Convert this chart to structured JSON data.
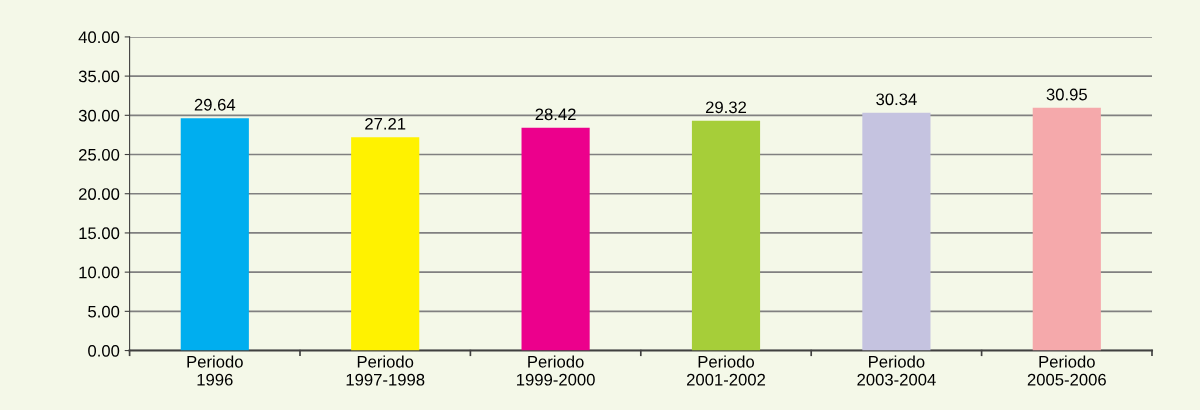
{
  "chart_data": {
    "type": "bar",
    "categories": [
      "Periodo\n1996",
      "Periodo\n1997-1998",
      "Periodo\n1999-2000",
      "Periodo\n2001-2002",
      "Periodo\n2003-2004",
      "Periodo\n2005-2006"
    ],
    "values": [
      29.64,
      27.21,
      28.42,
      29.32,
      30.34,
      30.95
    ],
    "colors": [
      "#00aeef",
      "#fff200",
      "#ec008c",
      "#a6ce39",
      "#c5c3e0",
      "#f5a9ab"
    ],
    "value_labels": [
      "29.64",
      "27.21",
      "28.42",
      "29.32",
      "30.34",
      "30.95"
    ],
    "ylim": [
      0,
      40
    ],
    "yticks": [
      {
        "value": 0,
        "label": "0.00"
      },
      {
        "value": 5,
        "label": "5.00"
      },
      {
        "value": 10,
        "label": "10.00"
      },
      {
        "value": 15,
        "label": "15.00"
      },
      {
        "value": 20,
        "label": "20.00"
      },
      {
        "value": 25,
        "label": "25.00"
      },
      {
        "value": 30,
        "label": "30.00"
      },
      {
        "value": 35,
        "label": "35.00"
      },
      {
        "value": 40,
        "label": "40.00"
      }
    ],
    "grid": "y"
  }
}
